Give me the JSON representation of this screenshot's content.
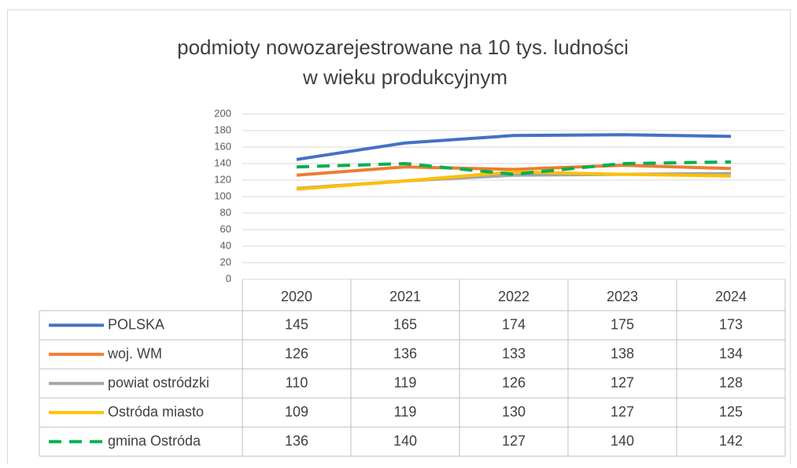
{
  "chart_data": {
    "type": "line",
    "title": [
      "podmioty nowozarejestrowane na 10 tys. ludności",
      "w wieku produkcyjnym"
    ],
    "categories": [
      "2020",
      "2021",
      "2022",
      "2023",
      "2024"
    ],
    "ylim": [
      0,
      200
    ],
    "yticks": [
      0,
      20,
      40,
      60,
      80,
      100,
      120,
      140,
      160,
      180,
      200
    ],
    "grid": true,
    "series": [
      {
        "name": "POLSKA",
        "color": "#4472c4",
        "values": [
          145,
          165,
          174,
          175,
          173
        ]
      },
      {
        "name": "woj. WM",
        "color": "#ed7d31",
        "values": [
          126,
          136,
          133,
          138,
          134
        ]
      },
      {
        "name": "powiat ostródzki",
        "color": "#a5a5a5",
        "values": [
          110,
          119,
          126,
          127,
          128
        ]
      },
      {
        "name": "Ostróda miasto",
        "color": "#ffc000",
        "values": [
          109,
          119,
          130,
          127,
          125
        ]
      },
      {
        "name": "gmina Ostróda",
        "color": "#00b050",
        "dashed": true,
        "values": [
          136,
          140,
          127,
          140,
          142
        ]
      }
    ]
  }
}
